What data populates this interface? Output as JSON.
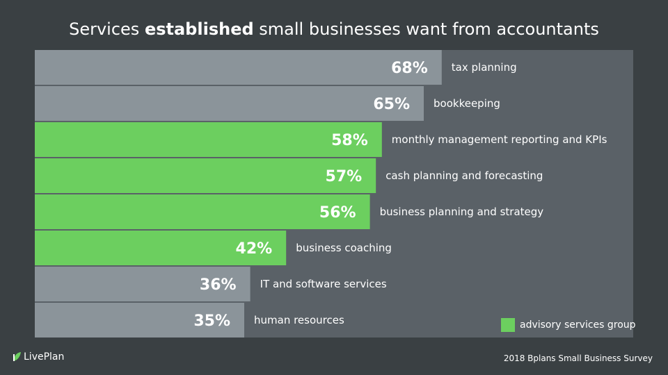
{
  "title": {
    "prefix": "Services",
    "emphasis": "established",
    "suffix": "small businesses want from accountants"
  },
  "chart_data": {
    "type": "bar",
    "orientation": "horizontal",
    "xlim": [
      0,
      100
    ],
    "categories": [
      "tax planning",
      "bookkeeping",
      "monthly management reporting and KPIs",
      "cash planning and forecasting",
      "business planning and strategy",
      "business coaching",
      "IT and software services",
      "human resources"
    ],
    "values": [
      68,
      65,
      58,
      57,
      56,
      42,
      36,
      35
    ],
    "data_labels": [
      "68%",
      "65%",
      "58%",
      "57%",
      "56%",
      "42%",
      "36%",
      "35%"
    ],
    "advisory": [
      false,
      false,
      true,
      true,
      true,
      true,
      false,
      false
    ],
    "grid": false
  },
  "legend": {
    "label": "advisory services group",
    "placement": "bottom-right"
  },
  "colors": {
    "background": "#3a4043",
    "panel": "#5a6167",
    "bar_default": "#8b949a",
    "bar_advisory": "#6ccf5f",
    "text": "#ffffff"
  },
  "logo": {
    "text": "LivePlan"
  },
  "source": "2018 Bplans Small Business Survey"
}
